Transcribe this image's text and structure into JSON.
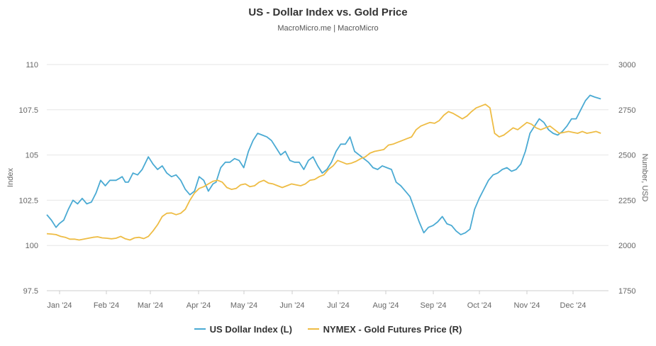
{
  "chart_data": {
    "type": "line",
    "title": "US - Dollar Index vs. Gold Price",
    "subtitle": "MacroMicro.me | MacroMicro",
    "x_tick_labels": [
      "Jan '24",
      "Feb '24",
      "Mar '24",
      "Apr '24",
      "May '24",
      "Jun '24",
      "Jul '24",
      "Aug '24",
      "Sep '24",
      "Oct '24",
      "Nov '24",
      "Dec '24"
    ],
    "x_range_days": [
      0,
      365
    ],
    "y_left": {
      "label": "Index",
      "range": [
        97.5,
        110
      ],
      "ticks": [
        "97.5",
        "100",
        "102.5",
        "105",
        "107.5",
        "110"
      ]
    },
    "y_right": {
      "label": "Number, USD",
      "range": [
        1750,
        3000
      ],
      "ticks": [
        "1750",
        "2000",
        "2250",
        "2500",
        "2750",
        "3000"
      ]
    },
    "legend_position": "bottom-center",
    "grid": true,
    "series": [
      {
        "name": "US Dollar Index (L)",
        "axis": "left",
        "color": "#4aaad3",
        "points": [
          [
            0,
            101.7
          ],
          [
            3,
            101.4
          ],
          [
            6,
            101.0
          ],
          [
            8,
            101.2
          ],
          [
            11,
            101.4
          ],
          [
            14,
            102.0
          ],
          [
            17,
            102.5
          ],
          [
            20,
            102.3
          ],
          [
            23,
            102.6
          ],
          [
            26,
            102.3
          ],
          [
            29,
            102.4
          ],
          [
            32,
            102.9
          ],
          [
            35,
            103.6
          ],
          [
            38,
            103.3
          ],
          [
            41,
            103.6
          ],
          [
            45,
            103.6
          ],
          [
            47,
            103.7
          ],
          [
            49,
            103.8
          ],
          [
            51,
            103.5
          ],
          [
            53,
            103.5
          ],
          [
            56,
            104.0
          ],
          [
            59,
            103.9
          ],
          [
            62,
            104.2
          ],
          [
            66,
            104.9
          ],
          [
            69,
            104.5
          ],
          [
            72,
            104.2
          ],
          [
            75,
            104.4
          ],
          [
            78,
            104.0
          ],
          [
            81,
            103.8
          ],
          [
            84,
            103.9
          ],
          [
            87,
            103.6
          ],
          [
            90,
            103.1
          ],
          [
            93,
            102.8
          ],
          [
            96,
            103.0
          ],
          [
            99,
            103.8
          ],
          [
            102,
            103.6
          ],
          [
            105,
            103.0
          ],
          [
            108,
            103.4
          ],
          [
            110,
            103.5
          ],
          [
            113,
            104.3
          ],
          [
            116,
            104.6
          ],
          [
            119,
            104.6
          ],
          [
            122,
            104.8
          ],
          [
            125,
            104.7
          ],
          [
            128,
            104.3
          ],
          [
            131,
            105.2
          ],
          [
            134,
            105.8
          ],
          [
            137,
            106.2
          ],
          [
            140,
            106.1
          ],
          [
            143,
            106.0
          ],
          [
            146,
            105.8
          ],
          [
            149,
            105.4
          ],
          [
            152,
            105.0
          ],
          [
            155,
            105.2
          ],
          [
            158,
            104.7
          ],
          [
            161,
            104.6
          ],
          [
            164,
            104.6
          ],
          [
            167,
            104.2
          ],
          [
            170,
            104.7
          ],
          [
            173,
            104.9
          ],
          [
            176,
            104.4
          ],
          [
            179,
            104.0
          ],
          [
            182,
            104.2
          ],
          [
            185,
            104.6
          ],
          [
            188,
            105.2
          ],
          [
            191,
            105.6
          ],
          [
            194,
            105.6
          ],
          [
            197,
            106.0
          ],
          [
            200,
            105.2
          ],
          [
            203,
            105.0
          ],
          [
            206,
            104.8
          ],
          [
            209,
            104.6
          ],
          [
            212,
            104.3
          ],
          [
            215,
            104.2
          ],
          [
            218,
            104.4
          ],
          [
            221,
            104.3
          ],
          [
            224,
            104.2
          ],
          [
            227,
            103.5
          ],
          [
            230,
            103.3
          ],
          [
            233,
            103.0
          ],
          [
            236,
            102.7
          ],
          [
            239,
            102.0
          ],
          [
            242,
            101.3
          ],
          [
            245,
            100.7
          ],
          [
            248,
            101.0
          ],
          [
            251,
            101.1
          ],
          [
            254,
            101.3
          ],
          [
            257,
            101.6
          ],
          [
            260,
            101.2
          ],
          [
            263,
            101.1
          ],
          [
            266,
            100.8
          ],
          [
            269,
            100.6
          ],
          [
            272,
            100.7
          ],
          [
            275,
            100.9
          ],
          [
            278,
            102.0
          ],
          [
            281,
            102.6
          ],
          [
            284,
            103.1
          ],
          [
            287,
            103.6
          ],
          [
            290,
            103.9
          ],
          [
            293,
            104.0
          ],
          [
            296,
            104.2
          ],
          [
            299,
            104.3
          ],
          [
            302,
            104.1
          ],
          [
            305,
            104.2
          ],
          [
            308,
            104.5
          ],
          [
            311,
            105.2
          ],
          [
            314,
            106.2
          ],
          [
            317,
            106.6
          ],
          [
            320,
            107.0
          ],
          [
            323,
            106.8
          ],
          [
            326,
            106.4
          ],
          [
            329,
            106.2
          ],
          [
            332,
            106.1
          ],
          [
            335,
            106.3
          ],
          [
            338,
            106.6
          ],
          [
            341,
            107.0
          ],
          [
            344,
            107.0
          ],
          [
            347,
            107.5
          ],
          [
            350,
            108.0
          ],
          [
            353,
            108.3
          ],
          [
            356,
            108.2
          ],
          [
            360,
            108.1
          ]
        ]
      },
      {
        "name": "NYMEX - Gold Futures Price (R)",
        "axis": "right",
        "color": "#eebc44",
        "points": [
          [
            0,
            2065
          ],
          [
            3,
            2063
          ],
          [
            6,
            2060
          ],
          [
            9,
            2050
          ],
          [
            12,
            2045
          ],
          [
            15,
            2035
          ],
          [
            18,
            2035
          ],
          [
            21,
            2030
          ],
          [
            24,
            2035
          ],
          [
            27,
            2040
          ],
          [
            30,
            2045
          ],
          [
            33,
            2048
          ],
          [
            36,
            2042
          ],
          [
            39,
            2040
          ],
          [
            42,
            2037
          ],
          [
            45,
            2040
          ],
          [
            48,
            2050
          ],
          [
            51,
            2037
          ],
          [
            54,
            2030
          ],
          [
            57,
            2042
          ],
          [
            60,
            2045
          ],
          [
            63,
            2038
          ],
          [
            66,
            2050
          ],
          [
            69,
            2080
          ],
          [
            72,
            2115
          ],
          [
            75,
            2160
          ],
          [
            78,
            2178
          ],
          [
            81,
            2180
          ],
          [
            84,
            2170
          ],
          [
            87,
            2178
          ],
          [
            90,
            2200
          ],
          [
            93,
            2250
          ],
          [
            96,
            2290
          ],
          [
            99,
            2315
          ],
          [
            102,
            2325
          ],
          [
            105,
            2340
          ],
          [
            108,
            2355
          ],
          [
            111,
            2360
          ],
          [
            114,
            2350
          ],
          [
            117,
            2320
          ],
          [
            120,
            2310
          ],
          [
            123,
            2315
          ],
          [
            126,
            2335
          ],
          [
            129,
            2340
          ],
          [
            132,
            2325
          ],
          [
            135,
            2330
          ],
          [
            138,
            2350
          ],
          [
            141,
            2360
          ],
          [
            144,
            2345
          ],
          [
            147,
            2340
          ],
          [
            150,
            2330
          ],
          [
            153,
            2320
          ],
          [
            156,
            2330
          ],
          [
            159,
            2340
          ],
          [
            162,
            2335
          ],
          [
            165,
            2330
          ],
          [
            168,
            2340
          ],
          [
            171,
            2360
          ],
          [
            174,
            2365
          ],
          [
            177,
            2380
          ],
          [
            180,
            2390
          ],
          [
            183,
            2420
          ],
          [
            186,
            2440
          ],
          [
            189,
            2470
          ],
          [
            192,
            2460
          ],
          [
            195,
            2450
          ],
          [
            198,
            2455
          ],
          [
            201,
            2465
          ],
          [
            204,
            2480
          ],
          [
            207,
            2490
          ],
          [
            210,
            2510
          ],
          [
            213,
            2520
          ],
          [
            216,
            2525
          ],
          [
            219,
            2530
          ],
          [
            222,
            2555
          ],
          [
            225,
            2560
          ],
          [
            228,
            2570
          ],
          [
            231,
            2580
          ],
          [
            234,
            2590
          ],
          [
            237,
            2600
          ],
          [
            240,
            2640
          ],
          [
            243,
            2660
          ],
          [
            246,
            2670
          ],
          [
            249,
            2680
          ],
          [
            252,
            2675
          ],
          [
            255,
            2690
          ],
          [
            258,
            2720
          ],
          [
            261,
            2740
          ],
          [
            264,
            2730
          ],
          [
            267,
            2715
          ],
          [
            270,
            2700
          ],
          [
            273,
            2715
          ],
          [
            276,
            2740
          ],
          [
            279,
            2760
          ],
          [
            282,
            2770
          ],
          [
            285,
            2780
          ],
          [
            288,
            2760
          ],
          [
            291,
            2620
          ],
          [
            294,
            2600
          ],
          [
            297,
            2610
          ],
          [
            300,
            2630
          ],
          [
            303,
            2650
          ],
          [
            306,
            2640
          ],
          [
            309,
            2660
          ],
          [
            312,
            2680
          ],
          [
            315,
            2670
          ],
          [
            318,
            2650
          ],
          [
            321,
            2640
          ],
          [
            324,
            2650
          ],
          [
            327,
            2660
          ],
          [
            330,
            2640
          ],
          [
            333,
            2620
          ],
          [
            336,
            2625
          ],
          [
            339,
            2630
          ],
          [
            342,
            2625
          ],
          [
            345,
            2620
          ],
          [
            348,
            2630
          ],
          [
            351,
            2620
          ],
          [
            354,
            2625
          ],
          [
            357,
            2630
          ],
          [
            360,
            2620
          ]
        ]
      }
    ]
  }
}
